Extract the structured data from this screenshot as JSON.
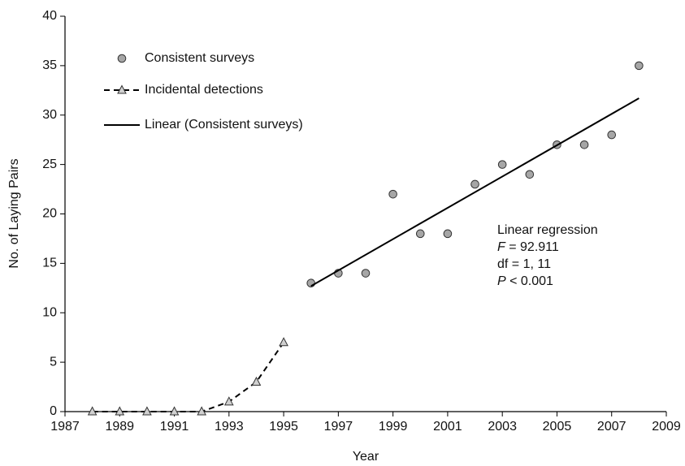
{
  "chart_data": {
    "type": "line",
    "xlabel": "Year",
    "ylabel": "No. of Laying Pairs",
    "xlim": [
      1987,
      2009
    ],
    "xticks": [
      1987,
      1989,
      1991,
      1993,
      1995,
      1997,
      1999,
      2001,
      2003,
      2005,
      2007,
      2009
    ],
    "ylim": [
      0,
      40
    ],
    "yticks": [
      0,
      5,
      10,
      15,
      20,
      25,
      30,
      35,
      40
    ],
    "series": [
      {
        "name": "Consistent surveys",
        "kind": "markers",
        "marker": "circle",
        "color": "#a6a6a6",
        "x": [
          1996,
          1997,
          1998,
          1999,
          2000,
          2001,
          2002,
          2003,
          2004,
          2005,
          2006,
          2007,
          2008
        ],
        "values": [
          13,
          14,
          14,
          22,
          18,
          18,
          23,
          25,
          24,
          27,
          27,
          28,
          35
        ]
      },
      {
        "name": "Incidental detections",
        "kind": "dashed-line-markers",
        "marker": "triangle",
        "color": "#d0d0d0",
        "x": [
          1988,
          1989,
          1990,
          1991,
          1992,
          1993,
          1994,
          1995
        ],
        "values": [
          0,
          0,
          0,
          0,
          0,
          1,
          3,
          7
        ]
      },
      {
        "name": "Linear (Consistent surveys)",
        "kind": "line",
        "color": "#000000",
        "x": [
          1996,
          2008
        ],
        "values": [
          12.7,
          31.7
        ]
      }
    ],
    "annotation": [
      {
        "text": "Linear regression"
      },
      {
        "symbol": "F",
        "text": " = 92.911"
      },
      {
        "text": "df = 1, 11"
      },
      {
        "symbol": "P",
        "text": " < 0.001"
      }
    ]
  }
}
